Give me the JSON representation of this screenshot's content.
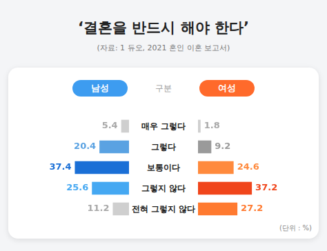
{
  "chart_data": {
    "type": "bar",
    "title": "‘결혼을 반드시 해야 한다’",
    "subtitle": "(자료: 1 듀오, 2021 혼인 이혼 보고서)",
    "ylabel": "구분",
    "annotations": [
      "(단위 : %)"
    ],
    "orientation": "horizontal",
    "categories": [
      "매우 그렇다",
      "그렇다",
      "보통이다",
      "그렇지 않다",
      "전혀 그렇지 않다"
    ],
    "series": [
      {
        "name": "남성",
        "color": "#3d9cf0",
        "colors": [
          "#cfcfcf",
          "#5aa2e2",
          "#1a6fd6",
          "#45a8f2",
          "#cfcfcf"
        ],
        "values": [
          5.4,
          20.4,
          37.4,
          25.6,
          11.2
        ]
      },
      {
        "name": "여성",
        "color": "#ff6a2b",
        "colors": [
          "#cfcfcf",
          "#9a9a9a",
          "#ff8a3d",
          "#f0451b",
          "#ff7a30"
        ],
        "values": [
          1.8,
          9.2,
          24.6,
          37.2,
          27.2
        ]
      }
    ],
    "xlim": [
      0,
      40
    ],
    "grid": false,
    "tick_labels": false,
    "data_labels": true,
    "legend": "top"
  }
}
